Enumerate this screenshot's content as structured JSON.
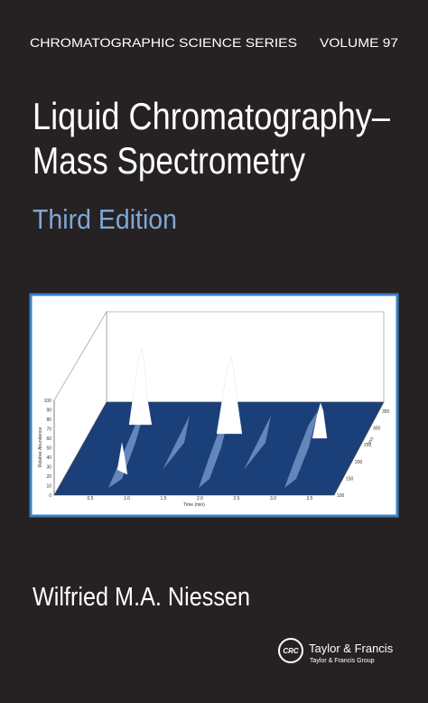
{
  "cover": {
    "series": "CHROMATOGRAPHIC SCIENCE SERIES",
    "volume": "VOLUME 97",
    "title_lines": [
      "Liquid Chromatography–",
      "Mass Spectrometry"
    ],
    "edition": "Third Edition",
    "author": "Wilfried M.A. Niessen",
    "publisher": "Taylor & Francis",
    "publisher_group": "Taylor & Francis Group",
    "logo": "CRC"
  },
  "figure": {
    "y_label": "Relative Abundance",
    "x_label": "Time (min)",
    "z_label": "m/z",
    "yticks": [
      "0",
      "10",
      "20",
      "30",
      "40",
      "50",
      "60",
      "70",
      "80",
      "90",
      "100"
    ],
    "xticks": [
      "0.5",
      "1.0",
      "1.5",
      "2.0",
      "2.5",
      "3.0",
      "3.5"
    ],
    "zticks": [
      "100",
      "150",
      "200",
      "250",
      "300",
      "350"
    ]
  }
}
